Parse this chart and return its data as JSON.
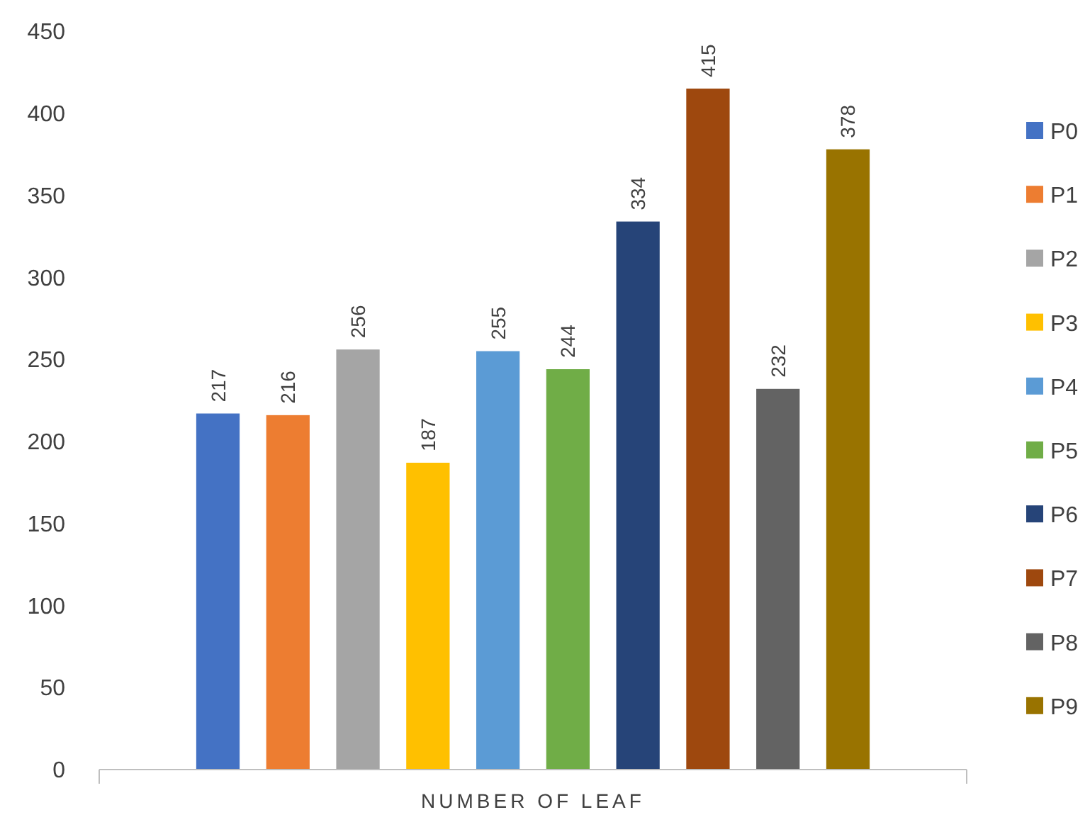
{
  "chart_data": {
    "type": "bar",
    "categories": [
      "NUMBER OF LEAF"
    ],
    "series": [
      {
        "name": "P0",
        "color": "#4472c4",
        "values": [
          217
        ]
      },
      {
        "name": "P1",
        "color": "#ed7d31",
        "values": [
          216
        ]
      },
      {
        "name": "P2",
        "color": "#a5a5a5",
        "values": [
          256
        ]
      },
      {
        "name": "P3",
        "color": "#ffc000",
        "values": [
          187
        ]
      },
      {
        "name": "P4",
        "color": "#5b9bd5",
        "values": [
          255
        ]
      },
      {
        "name": "P5",
        "color": "#70ad47",
        "values": [
          244
        ]
      },
      {
        "name": "P6",
        "color": "#264478",
        "values": [
          334
        ]
      },
      {
        "name": "P7",
        "color": "#9e480e",
        "values": [
          415
        ]
      },
      {
        "name": "P8",
        "color": "#636363",
        "values": [
          232
        ]
      },
      {
        "name": "P9",
        "color": "#997300",
        "values": [
          378
        ]
      }
    ],
    "ylim": [
      0,
      450
    ],
    "yticks": [
      0,
      50,
      100,
      150,
      200,
      250,
      300,
      350,
      400,
      450
    ],
    "data_labels": true,
    "legend": "right",
    "grid": false
  }
}
